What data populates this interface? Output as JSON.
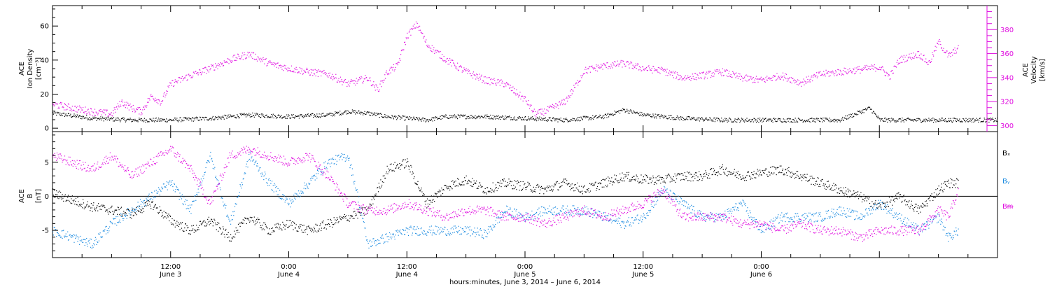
{
  "chart_data": [
    {
      "type": "scatter",
      "panel": "top",
      "x_range_hours": [
        0,
        96
      ],
      "x_start": "June 3, 2014 00:00",
      "left_axis": {
        "label_lines": [
          "ACE",
          "Ion Density",
          "[cm⁻³]"
        ],
        "ylim": [
          -2,
          72
        ],
        "ticks": [
          0,
          20,
          40,
          60
        ]
      },
      "right_axis": {
        "label_lines": [
          "ACE",
          "Velocity",
          "[km/s]"
        ],
        "ylim": [
          295,
          400
        ],
        "ticks": [
          300,
          320,
          340,
          360,
          380
        ],
        "color": "#e010e0"
      },
      "series": [
        {
          "name": "Ion Density",
          "axis": "left",
          "color": "#000000",
          "points": [
            [
              0,
              9
            ],
            [
              4,
              6
            ],
            [
              8,
              5
            ],
            [
              12,
              5
            ],
            [
              16,
              6
            ],
            [
              20,
              8
            ],
            [
              24,
              7
            ],
            [
              28,
              8
            ],
            [
              30,
              10
            ],
            [
              32,
              9
            ],
            [
              34,
              7
            ],
            [
              36,
              6
            ],
            [
              38,
              5
            ],
            [
              40,
              7
            ],
            [
              44,
              7
            ],
            [
              48,
              6
            ],
            [
              52,
              5
            ],
            [
              56,
              7
            ],
            [
              58,
              11
            ],
            [
              60,
              8
            ],
            [
              64,
              6
            ],
            [
              68,
              5
            ],
            [
              72,
              5
            ],
            [
              76,
              5
            ],
            [
              80,
              5
            ],
            [
              83,
              12
            ],
            [
              84,
              5
            ],
            [
              88,
              5
            ],
            [
              96,
              5
            ]
          ]
        },
        {
          "name": "Velocity",
          "axis": "right",
          "color": "#e010e0",
          "points": [
            [
              0,
              318
            ],
            [
              2,
              315
            ],
            [
              4,
              312
            ],
            [
              6,
              310
            ],
            [
              7,
              320
            ],
            [
              8,
              315
            ],
            [
              9,
              312
            ],
            [
              10,
              325
            ],
            [
              11,
              320
            ],
            [
              12,
              335
            ],
            [
              14,
              342
            ],
            [
              16,
              348
            ],
            [
              18,
              355
            ],
            [
              20,
              360
            ],
            [
              22,
              352
            ],
            [
              24,
              348
            ],
            [
              26,
              345
            ],
            [
              28,
              343
            ],
            [
              30,
              335
            ],
            [
              32,
              340
            ],
            [
              33,
              330
            ],
            [
              34,
              345
            ],
            [
              35,
              350
            ],
            [
              36,
              375
            ],
            [
              37,
              385
            ],
            [
              38,
              368
            ],
            [
              40,
              355
            ],
            [
              42,
              345
            ],
            [
              44,
              338
            ],
            [
              46,
              335
            ],
            [
              47,
              328
            ],
            [
              48,
              322
            ],
            [
              49,
              310
            ],
            [
              50,
              312
            ],
            [
              52,
              320
            ],
            [
              53,
              332
            ],
            [
              54,
              346
            ],
            [
              56,
              350
            ],
            [
              58,
              352
            ],
            [
              60,
              348
            ],
            [
              62,
              346
            ],
            [
              64,
              340
            ],
            [
              66,
              342
            ],
            [
              68,
              345
            ],
            [
              70,
              340
            ],
            [
              72,
              338
            ],
            [
              74,
              342
            ],
            [
              76,
              336
            ],
            [
              78,
              343
            ],
            [
              80,
              345
            ],
            [
              82,
              347
            ],
            [
              84,
              349
            ],
            [
              85,
              341
            ],
            [
              86,
              355
            ],
            [
              88,
              360
            ],
            [
              89,
              352
            ],
            [
              90,
              370
            ],
            [
              91,
              358
            ],
            [
              92,
              365
            ]
          ]
        }
      ]
    },
    {
      "type": "scatter",
      "panel": "bottom",
      "x_range_hours": [
        0,
        96
      ],
      "left_axis": {
        "label_lines": [
          "ACE",
          "B",
          "[nT]"
        ],
        "ylim": [
          -9,
          9.5
        ],
        "ticks": [
          -5,
          0,
          5
        ]
      },
      "legend": [
        "Bₓ",
        "Bᵧ",
        "Bᵯ"
      ],
      "series": [
        {
          "name": "Bx",
          "axis": "left",
          "color": "#000000",
          "points": [
            [
              0,
              0.5
            ],
            [
              2,
              -0.5
            ],
            [
              4,
              -1.5
            ],
            [
              6,
              -2
            ],
            [
              8,
              -2.5
            ],
            [
              10,
              -1
            ],
            [
              12,
              -3.5
            ],
            [
              14,
              -5
            ],
            [
              16,
              -3.5
            ],
            [
              18,
              -6
            ],
            [
              20,
              -3
            ],
            [
              22,
              -5
            ],
            [
              24,
              -4
            ],
            [
              26,
              -5
            ],
            [
              28,
              -4
            ],
            [
              30,
              -3
            ],
            [
              32,
              -2
            ],
            [
              34,
              4
            ],
            [
              36,
              5
            ],
            [
              38,
              -1
            ],
            [
              40,
              1.5
            ],
            [
              42,
              2.5
            ],
            [
              44,
              1
            ],
            [
              46,
              2
            ],
            [
              48,
              1.5
            ],
            [
              50,
              1
            ],
            [
              52,
              2
            ],
            [
              54,
              1
            ],
            [
              56,
              2
            ],
            [
              58,
              3
            ],
            [
              60,
              2.5
            ],
            [
              62,
              2.5
            ],
            [
              64,
              3
            ],
            [
              66,
              3
            ],
            [
              68,
              4
            ],
            [
              70,
              3
            ],
            [
              72,
              3.5
            ],
            [
              74,
              4
            ],
            [
              76,
              3
            ],
            [
              78,
              2
            ],
            [
              80,
              1
            ],
            [
              82,
              0
            ],
            [
              84,
              -1.5
            ],
            [
              86,
              0
            ],
            [
              88,
              -2
            ],
            [
              90,
              1
            ],
            [
              91,
              2
            ],
            [
              92,
              2
            ]
          ]
        },
        {
          "name": "By",
          "axis": "left",
          "color": "#1a8ae0",
          "points": [
            [
              0,
              -5
            ],
            [
              2,
              -6
            ],
            [
              4,
              -7
            ],
            [
              6,
              -4
            ],
            [
              8,
              -2
            ],
            [
              10,
              0
            ],
            [
              12,
              2
            ],
            [
              14,
              -2
            ],
            [
              16,
              6
            ],
            [
              18,
              -4
            ],
            [
              20,
              6
            ],
            [
              22,
              2
            ],
            [
              24,
              -1
            ],
            [
              26,
              2
            ],
            [
              28,
              5
            ],
            [
              30,
              6
            ],
            [
              31,
              0
            ],
            [
              32,
              -7
            ],
            [
              34,
              -6
            ],
            [
              36,
              -5
            ],
            [
              38,
              -5
            ],
            [
              40,
              -5
            ],
            [
              42,
              -5
            ],
            [
              44,
              -5.5
            ],
            [
              46,
              -2
            ],
            [
              48,
              -3
            ],
            [
              50,
              -2
            ],
            [
              52,
              -2
            ],
            [
              54,
              -2
            ],
            [
              56,
              -3
            ],
            [
              58,
              -4
            ],
            [
              60,
              -3
            ],
            [
              62,
              1
            ],
            [
              64,
              -1
            ],
            [
              66,
              -3
            ],
            [
              68,
              -3
            ],
            [
              70,
              -1
            ],
            [
              72,
              -5
            ],
            [
              74,
              -3
            ],
            [
              76,
              -3
            ],
            [
              78,
              -3
            ],
            [
              80,
              -2
            ],
            [
              82,
              -3
            ],
            [
              84,
              -1
            ],
            [
              86,
              -3
            ],
            [
              88,
              -5
            ],
            [
              90,
              -3
            ],
            [
              91,
              -6
            ],
            [
              92,
              -5
            ]
          ]
        },
        {
          "name": "Bz",
          "axis": "left",
          "color": "#e010e0",
          "points": [
            [
              0,
              6
            ],
            [
              2,
              5
            ],
            [
              4,
              4
            ],
            [
              6,
              6
            ],
            [
              8,
              3
            ],
            [
              10,
              5
            ],
            [
              12,
              7
            ],
            [
              14,
              4
            ],
            [
              16,
              -1
            ],
            [
              18,
              6
            ],
            [
              20,
              7
            ],
            [
              22,
              6
            ],
            [
              24,
              5
            ],
            [
              26,
              6
            ],
            [
              28,
              3
            ],
            [
              30,
              -1
            ],
            [
              32,
              -2
            ],
            [
              34,
              -2
            ],
            [
              36,
              -1
            ],
            [
              38,
              -2
            ],
            [
              40,
              -3
            ],
            [
              42,
              -2
            ],
            [
              44,
              -2
            ],
            [
              46,
              -3
            ],
            [
              48,
              -3
            ],
            [
              50,
              -4
            ],
            [
              52,
              -3
            ],
            [
              54,
              -2
            ],
            [
              56,
              -3
            ],
            [
              58,
              -2
            ],
            [
              60,
              -1
            ],
            [
              62,
              1
            ],
            [
              64,
              -3
            ],
            [
              66,
              -3
            ],
            [
              68,
              -3
            ],
            [
              70,
              -4
            ],
            [
              72,
              -4
            ],
            [
              74,
              -5
            ],
            [
              76,
              -4
            ],
            [
              78,
              -5
            ],
            [
              80,
              -5
            ],
            [
              82,
              -6
            ],
            [
              84,
              -5
            ],
            [
              86,
              -5
            ],
            [
              88,
              -5
            ],
            [
              90,
              -2
            ],
            [
              91,
              -3
            ],
            [
              92,
              1
            ]
          ]
        }
      ]
    }
  ],
  "x_axis": {
    "ticks": [
      {
        "hour": 0,
        "time": "",
        "date": ""
      },
      {
        "hour": 12,
        "time": "12:00",
        "date": "June 3"
      },
      {
        "hour": 24,
        "time": "0:00",
        "date": "June 4"
      },
      {
        "hour": 36,
        "time": "12:00",
        "date": "June 4"
      },
      {
        "hour": 48,
        "time": "0:00",
        "date": "June 5"
      },
      {
        "hour": 60,
        "time": "12:00",
        "date": "June 5"
      },
      {
        "hour": 72,
        "time": "0:00",
        "date": "June 6"
      }
    ],
    "title": "hours:minutes, June  3, 2014 – June  6, 2014"
  },
  "legend_labels": {
    "bx": "Bₓ",
    "by": "Bᵧ",
    "bz": "Bᵯ"
  }
}
